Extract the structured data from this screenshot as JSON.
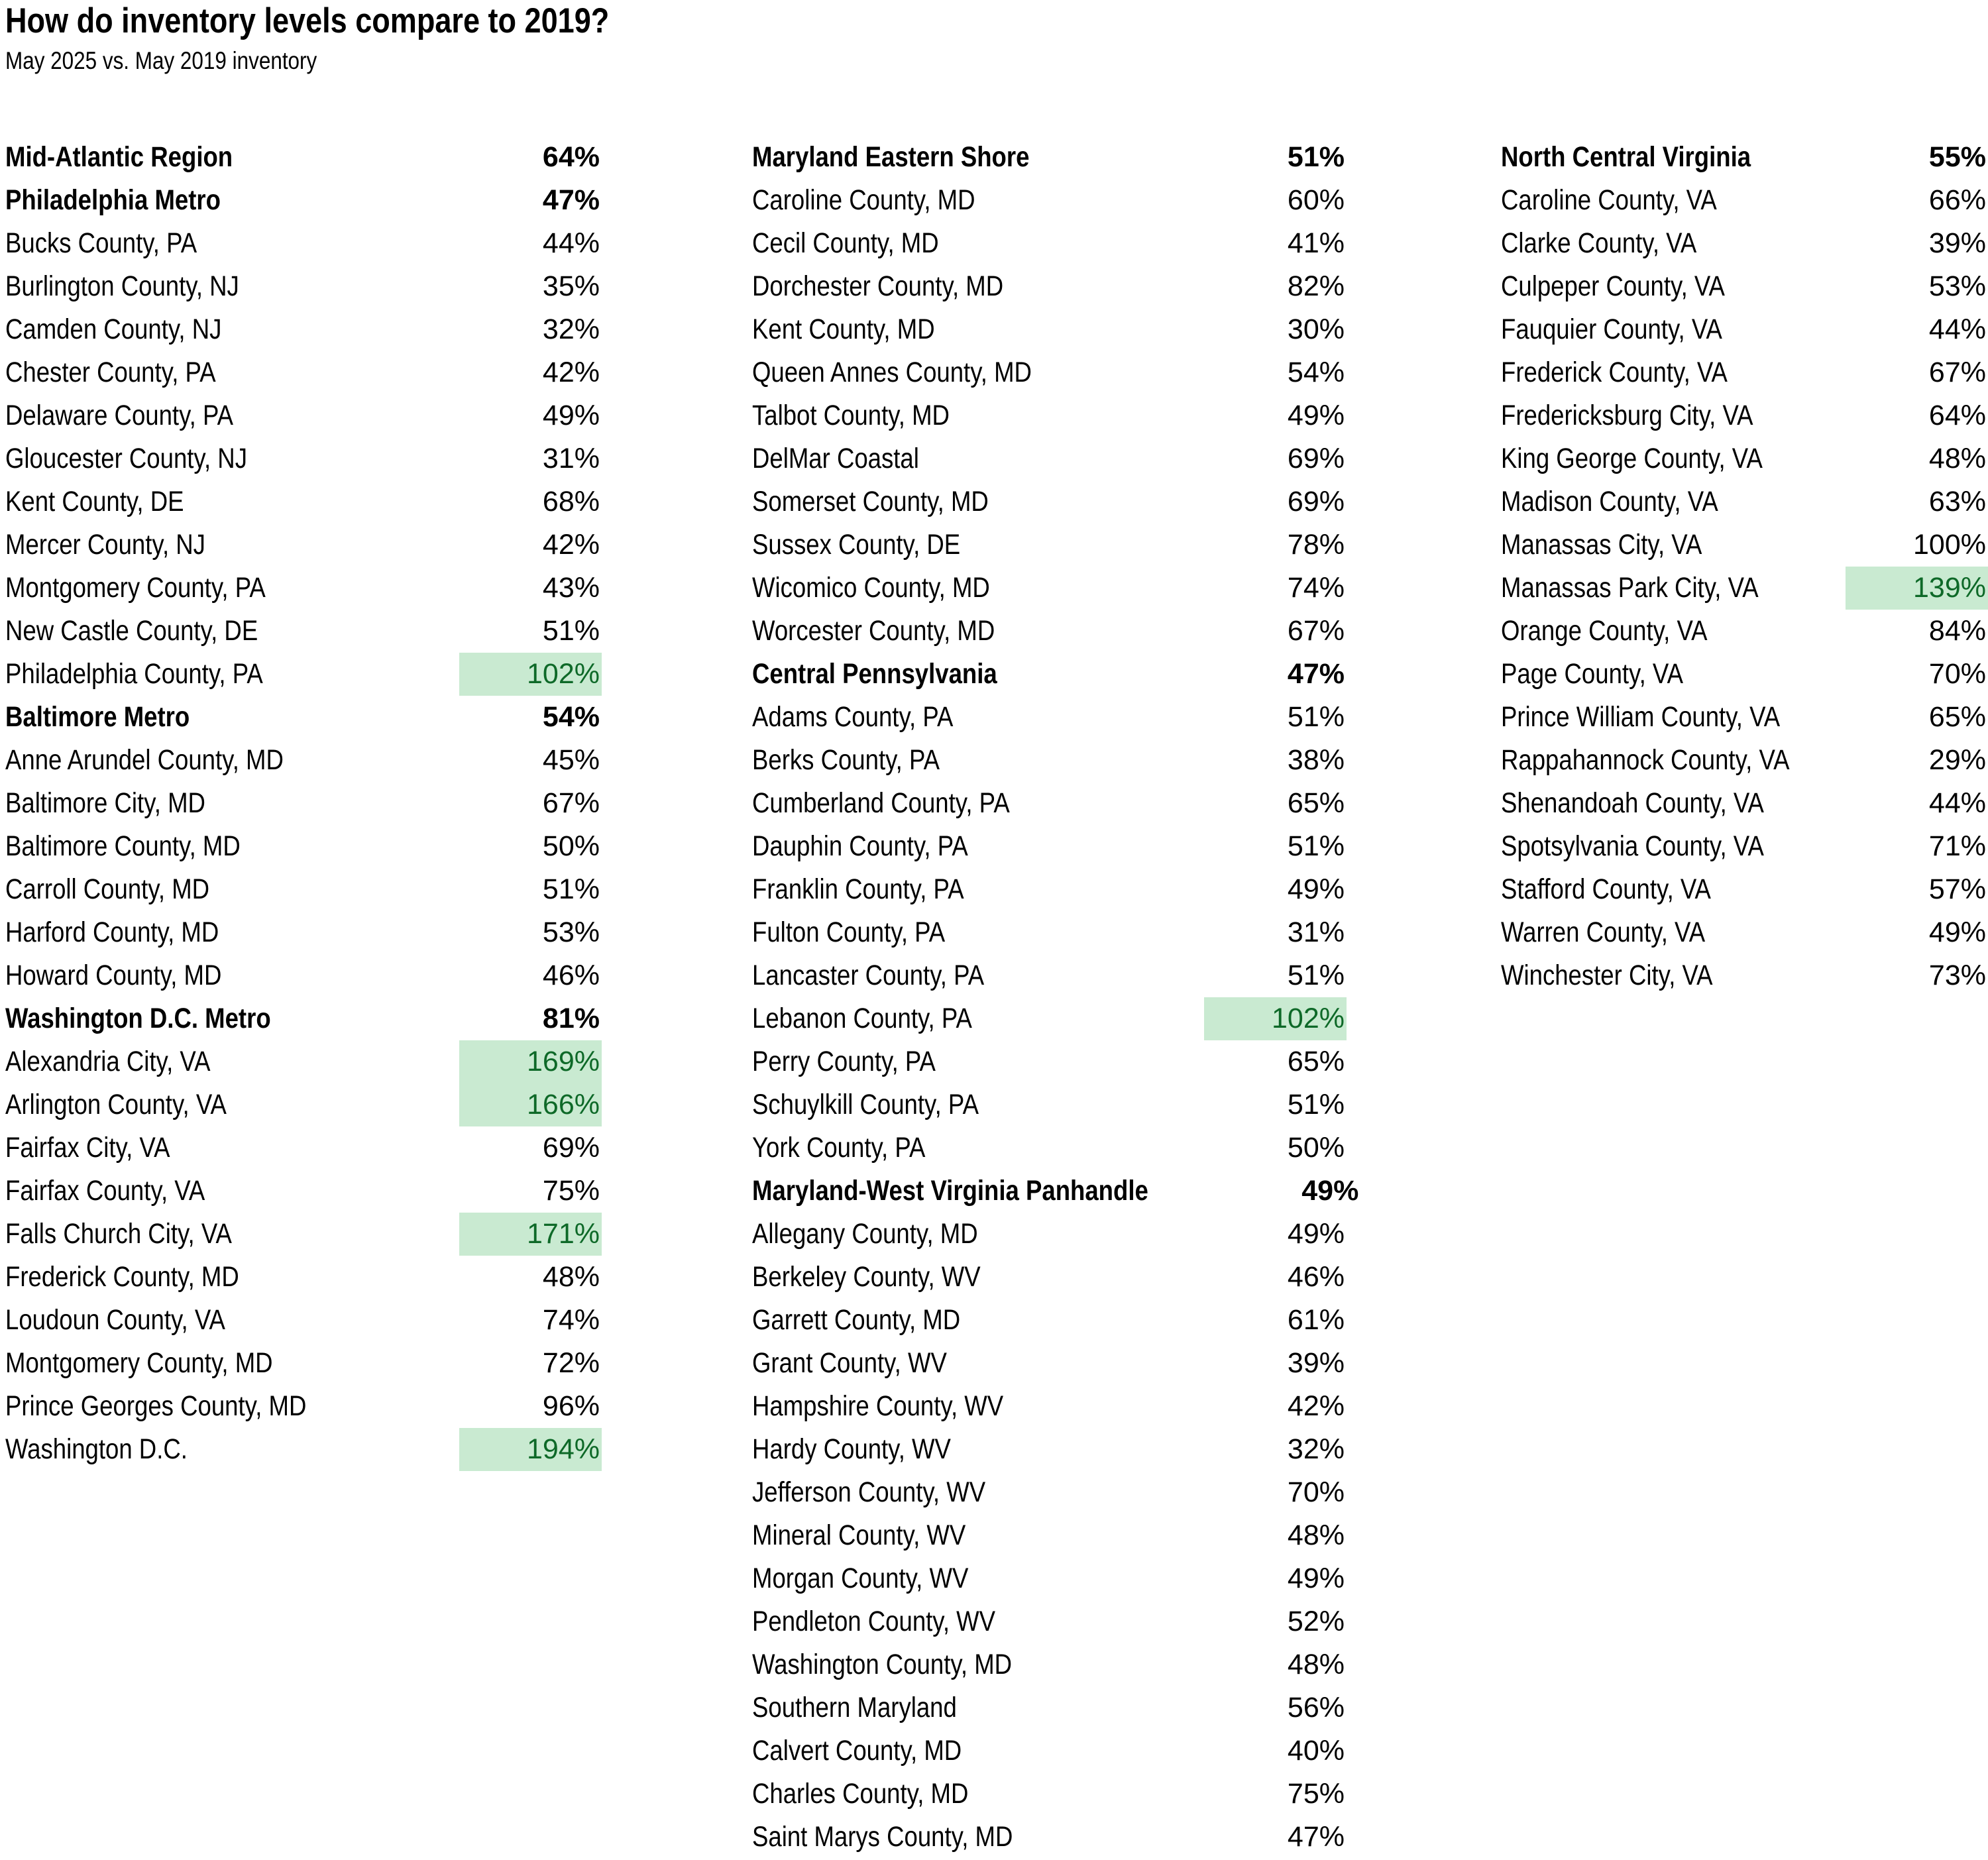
{
  "title": "How do inventory levels compare to 2019?",
  "subtitle": "May 2025 vs. May 2019 inventory",
  "colors": {
    "text": "#000000",
    "highlight_bg": "#c9ead1",
    "highlight_text": "#0e6928"
  },
  "chart_data": {
    "type": "table",
    "title": "How do inventory levels compare to 2019?",
    "subtitle": "May 2025 vs. May 2019 inventory",
    "value_unit": "percent of May 2019 inventory",
    "highlight_rule": "values above 100% shown green on light-green fill",
    "columns": [
      {
        "rows": [
          {
            "label": "Mid-Atlantic Region",
            "value": "64%",
            "bold": true,
            "hl": false
          },
          {
            "label": "Philadelphia Metro",
            "value": "47%",
            "bold": true,
            "hl": false
          },
          {
            "label": "Bucks County, PA",
            "value": "44%",
            "bold": false,
            "hl": false
          },
          {
            "label": "Burlington County, NJ",
            "value": "35%",
            "bold": false,
            "hl": false
          },
          {
            "label": "Camden County, NJ",
            "value": "32%",
            "bold": false,
            "hl": false
          },
          {
            "label": "Chester County, PA",
            "value": "42%",
            "bold": false,
            "hl": false
          },
          {
            "label": "Delaware County, PA",
            "value": "49%",
            "bold": false,
            "hl": false
          },
          {
            "label": "Gloucester County, NJ",
            "value": "31%",
            "bold": false,
            "hl": false
          },
          {
            "label": "Kent County, DE",
            "value": "68%",
            "bold": false,
            "hl": false
          },
          {
            "label": "Mercer County, NJ",
            "value": "42%",
            "bold": false,
            "hl": false
          },
          {
            "label": "Montgomery County, PA",
            "value": "43%",
            "bold": false,
            "hl": false
          },
          {
            "label": "New Castle County, DE",
            "value": "51%",
            "bold": false,
            "hl": false
          },
          {
            "label": "Philadelphia County, PA",
            "value": "102%",
            "bold": false,
            "hl": true
          },
          {
            "label": "Baltimore Metro",
            "value": "54%",
            "bold": true,
            "hl": false
          },
          {
            "label": "Anne Arundel County, MD",
            "value": "45%",
            "bold": false,
            "hl": false
          },
          {
            "label": "Baltimore City, MD",
            "value": "67%",
            "bold": false,
            "hl": false
          },
          {
            "label": "Baltimore County, MD",
            "value": "50%",
            "bold": false,
            "hl": false
          },
          {
            "label": "Carroll County, MD",
            "value": "51%",
            "bold": false,
            "hl": false
          },
          {
            "label": "Harford County, MD",
            "value": "53%",
            "bold": false,
            "hl": false
          },
          {
            "label": "Howard County, MD",
            "value": "46%",
            "bold": false,
            "hl": false
          },
          {
            "label": "Washington D.C. Metro",
            "value": "81%",
            "bold": true,
            "hl": false
          },
          {
            "label": "Alexandria City, VA",
            "value": "169%",
            "bold": false,
            "hl": true
          },
          {
            "label": "Arlington County, VA",
            "value": "166%",
            "bold": false,
            "hl": true
          },
          {
            "label": "Fairfax City, VA",
            "value": "69%",
            "bold": false,
            "hl": false
          },
          {
            "label": "Fairfax County, VA",
            "value": "75%",
            "bold": false,
            "hl": false
          },
          {
            "label": "Falls Church City, VA",
            "value": "171%",
            "bold": false,
            "hl": true
          },
          {
            "label": "Frederick County, MD",
            "value": "48%",
            "bold": false,
            "hl": false
          },
          {
            "label": "Loudoun County, VA",
            "value": "74%",
            "bold": false,
            "hl": false
          },
          {
            "label": "Montgomery County, MD",
            "value": "72%",
            "bold": false,
            "hl": false
          },
          {
            "label": "Prince Georges County, MD",
            "value": "96%",
            "bold": false,
            "hl": false
          },
          {
            "label": "Washington D.C.",
            "value": "194%",
            "bold": false,
            "hl": true
          }
        ]
      },
      {
        "rows": [
          {
            "label": "Maryland Eastern Shore",
            "value": "51%",
            "bold": true,
            "hl": false
          },
          {
            "label": "Caroline County, MD",
            "value": "60%",
            "bold": false,
            "hl": false
          },
          {
            "label": "Cecil County, MD",
            "value": "41%",
            "bold": false,
            "hl": false
          },
          {
            "label": "Dorchester County, MD",
            "value": "82%",
            "bold": false,
            "hl": false
          },
          {
            "label": "Kent County, MD",
            "value": "30%",
            "bold": false,
            "hl": false
          },
          {
            "label": "Queen Annes County, MD",
            "value": "54%",
            "bold": false,
            "hl": false
          },
          {
            "label": "Talbot County, MD",
            "value": "49%",
            "bold": false,
            "hl": false
          },
          {
            "label": "DelMar Coastal",
            "value": "69%",
            "bold": false,
            "hl": false
          },
          {
            "label": "Somerset County, MD",
            "value": "69%",
            "bold": false,
            "hl": false
          },
          {
            "label": "Sussex County, DE",
            "value": "78%",
            "bold": false,
            "hl": false
          },
          {
            "label": "Wicomico County, MD",
            "value": "74%",
            "bold": false,
            "hl": false
          },
          {
            "label": "Worcester County, MD",
            "value": "67%",
            "bold": false,
            "hl": false
          },
          {
            "label": "Central Pennsylvania",
            "value": "47%",
            "bold": true,
            "hl": false
          },
          {
            "label": "Adams County, PA",
            "value": "51%",
            "bold": false,
            "hl": false
          },
          {
            "label": "Berks County, PA",
            "value": "38%",
            "bold": false,
            "hl": false
          },
          {
            "label": "Cumberland County, PA",
            "value": "65%",
            "bold": false,
            "hl": false
          },
          {
            "label": "Dauphin County, PA",
            "value": "51%",
            "bold": false,
            "hl": false
          },
          {
            "label": "Franklin County, PA",
            "value": "49%",
            "bold": false,
            "hl": false
          },
          {
            "label": "Fulton County, PA",
            "value": "31%",
            "bold": false,
            "hl": false
          },
          {
            "label": "Lancaster County, PA",
            "value": "51%",
            "bold": false,
            "hl": false
          },
          {
            "label": "Lebanon County, PA",
            "value": "102%",
            "bold": false,
            "hl": true
          },
          {
            "label": "Perry County, PA",
            "value": "65%",
            "bold": false,
            "hl": false
          },
          {
            "label": "Schuylkill County, PA",
            "value": "51%",
            "bold": false,
            "hl": false
          },
          {
            "label": "York County, PA",
            "value": "50%",
            "bold": false,
            "hl": false
          },
          {
            "label": "Maryland-West Virginia Panhandle",
            "value": "49%",
            "bold": true,
            "hl": false
          },
          {
            "label": "Allegany County, MD",
            "value": "49%",
            "bold": false,
            "hl": false
          },
          {
            "label": "Berkeley County, WV",
            "value": "46%",
            "bold": false,
            "hl": false
          },
          {
            "label": "Garrett County, MD",
            "value": "61%",
            "bold": false,
            "hl": false
          },
          {
            "label": "Grant County, WV",
            "value": "39%",
            "bold": false,
            "hl": false
          },
          {
            "label": "Hampshire County, WV",
            "value": "42%",
            "bold": false,
            "hl": false
          },
          {
            "label": "Hardy County, WV",
            "value": "32%",
            "bold": false,
            "hl": false
          },
          {
            "label": "Jefferson County, WV",
            "value": "70%",
            "bold": false,
            "hl": false
          },
          {
            "label": "Mineral County, WV",
            "value": "48%",
            "bold": false,
            "hl": false
          },
          {
            "label": "Morgan County, WV",
            "value": "49%",
            "bold": false,
            "hl": false
          },
          {
            "label": "Pendleton County, WV",
            "value": "52%",
            "bold": false,
            "hl": false
          },
          {
            "label": "Washington County, MD",
            "value": "48%",
            "bold": false,
            "hl": false
          },
          {
            "label": "Southern Maryland",
            "value": "56%",
            "bold": false,
            "hl": false
          },
          {
            "label": "Calvert County, MD",
            "value": "40%",
            "bold": false,
            "hl": false
          },
          {
            "label": "Charles County, MD",
            "value": "75%",
            "bold": false,
            "hl": false
          },
          {
            "label": "Saint Marys County, MD",
            "value": "47%",
            "bold": false,
            "hl": false
          }
        ]
      },
      {
        "rows": [
          {
            "label": "North Central Virginia",
            "value": "55%",
            "bold": true,
            "hl": false
          },
          {
            "label": "Caroline County, VA",
            "value": "66%",
            "bold": false,
            "hl": false
          },
          {
            "label": "Clarke County, VA",
            "value": "39%",
            "bold": false,
            "hl": false
          },
          {
            "label": "Culpeper County, VA",
            "value": "53%",
            "bold": false,
            "hl": false
          },
          {
            "label": "Fauquier County, VA",
            "value": "44%",
            "bold": false,
            "hl": false
          },
          {
            "label": "Frederick County, VA",
            "value": "67%",
            "bold": false,
            "hl": false
          },
          {
            "label": "Fredericksburg City, VA",
            "value": "64%",
            "bold": false,
            "hl": false
          },
          {
            "label": "King George County, VA",
            "value": "48%",
            "bold": false,
            "hl": false
          },
          {
            "label": "Madison County, VA",
            "value": "63%",
            "bold": false,
            "hl": false
          },
          {
            "label": "Manassas City, VA",
            "value": "100%",
            "bold": false,
            "hl": false
          },
          {
            "label": "Manassas Park City, VA",
            "value": "139%",
            "bold": false,
            "hl": true
          },
          {
            "label": "Orange County, VA",
            "value": "84%",
            "bold": false,
            "hl": false
          },
          {
            "label": "Page County, VA",
            "value": "70%",
            "bold": false,
            "hl": false
          },
          {
            "label": "Prince William County, VA",
            "value": "65%",
            "bold": false,
            "hl": false
          },
          {
            "label": "Rappahannock County, VA",
            "value": "29%",
            "bold": false,
            "hl": false
          },
          {
            "label": "Shenandoah County, VA",
            "value": "44%",
            "bold": false,
            "hl": false
          },
          {
            "label": "Spotsylvania County, VA",
            "value": "71%",
            "bold": false,
            "hl": false
          },
          {
            "label": "Stafford County, VA",
            "value": "57%",
            "bold": false,
            "hl": false
          },
          {
            "label": "Warren County, VA",
            "value": "49%",
            "bold": false,
            "hl": false
          },
          {
            "label": "Winchester City, VA",
            "value": "73%",
            "bold": false,
            "hl": false
          }
        ]
      }
    ]
  }
}
